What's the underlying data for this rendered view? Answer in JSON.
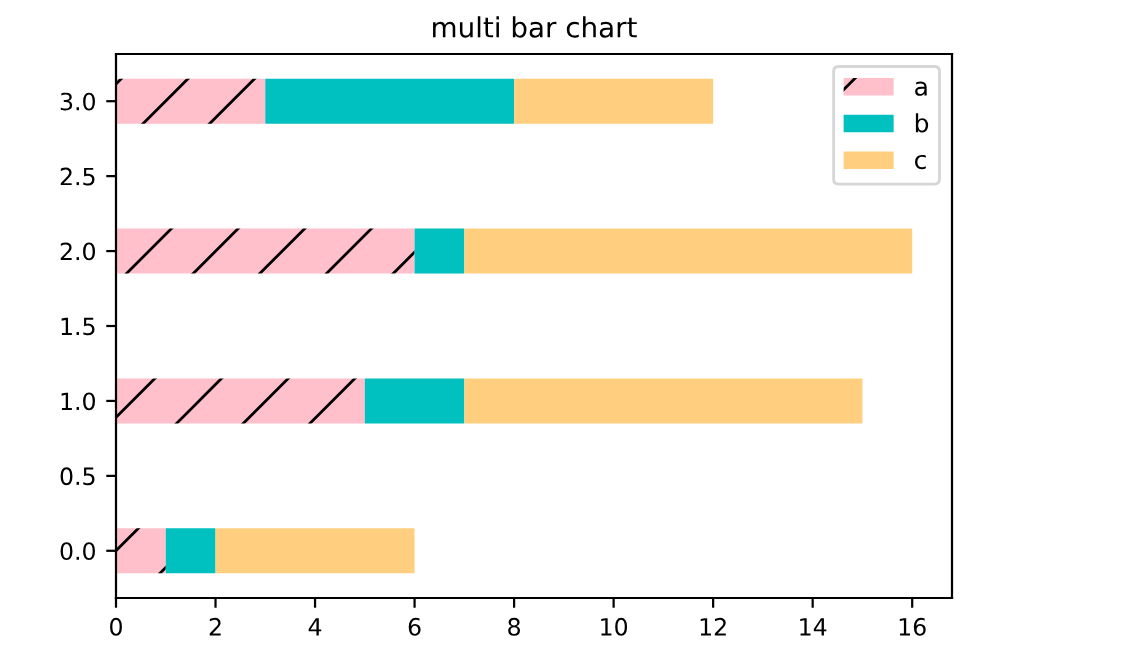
{
  "chart_data": {
    "type": "bar",
    "title": "multi bar chart",
    "orientation": "horizontal",
    "stacked": true,
    "x": [
      0,
      1,
      2,
      3
    ],
    "series": [
      {
        "name": "a",
        "color": "#ffc0cb",
        "values": [
          1,
          5,
          6,
          3
        ]
      },
      {
        "name": "b",
        "color": "#00c0c0",
        "values": [
          1,
          2,
          1,
          5
        ]
      },
      {
        "name": "c",
        "color": "#ffcf7f",
        "values": [
          4,
          8,
          9,
          4
        ]
      }
    ],
    "xlim": [
      0,
      16.8
    ],
    "xticks": [
      0,
      2,
      4,
      6,
      8,
      10,
      12,
      14,
      16
    ],
    "ylim": [
      -0.315,
      3.315
    ],
    "yticks": [
      {
        "value": 0,
        "label": "0.0"
      },
      {
        "value": 0.5,
        "label": "0.5"
      },
      {
        "value": 1,
        "label": "1.0"
      },
      {
        "value": 1.5,
        "label": "1.5"
      },
      {
        "value": 2,
        "label": "2.0"
      },
      {
        "value": 2.5,
        "label": "2.5"
      },
      {
        "value": 3,
        "label": "3.0"
      }
    ],
    "legend": "top right",
    "grid": false
  }
}
